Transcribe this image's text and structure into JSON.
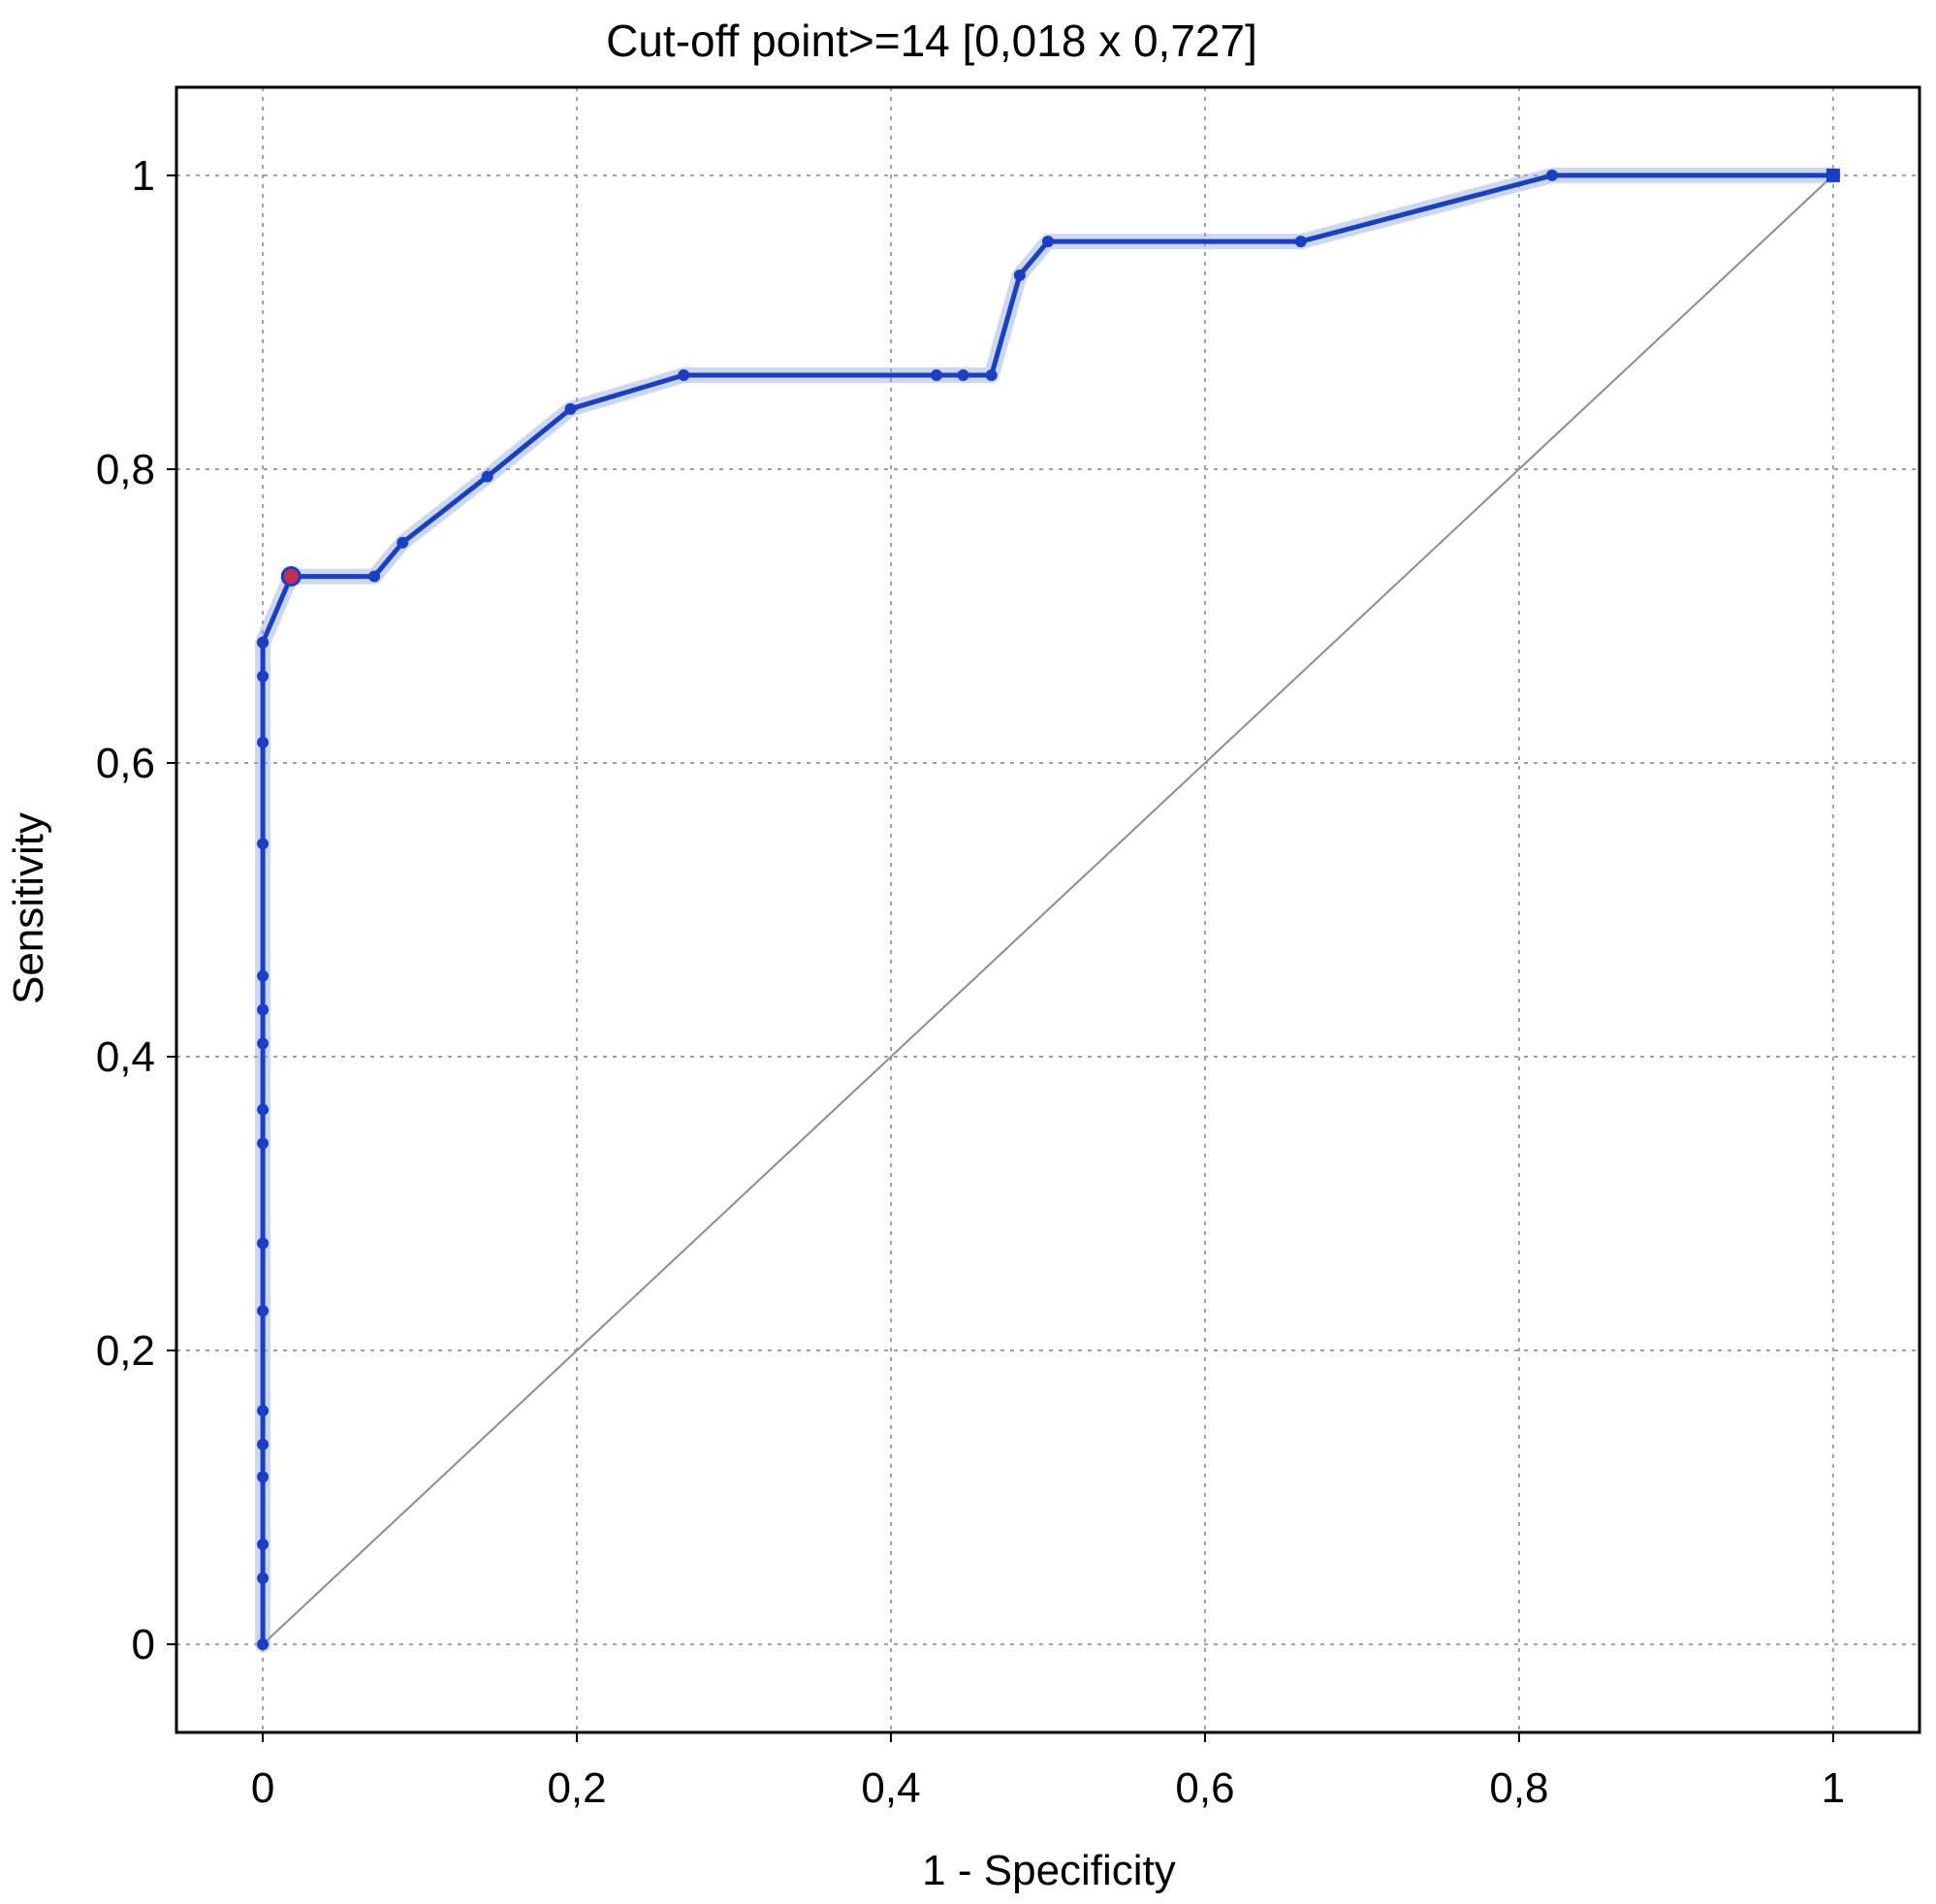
{
  "chart_data": {
    "type": "line",
    "title": "Cut-off point>=14 [0,018 x 0,727]",
    "xlabel": "1 - Specificity",
    "ylabel": "Sensitivity",
    "xlim": [
      -0.055,
      1.055
    ],
    "ylim": [
      -0.06,
      1.06
    ],
    "grid": true,
    "x_ticks": [
      {
        "value": 0,
        "label": "0"
      },
      {
        "value": 0.2,
        "label": "0,2"
      },
      {
        "value": 0.4,
        "label": "0,4"
      },
      {
        "value": 0.6,
        "label": "0,6"
      },
      {
        "value": 0.8,
        "label": "0,8"
      },
      {
        "value": 1,
        "label": "1"
      }
    ],
    "y_ticks": [
      {
        "value": 0,
        "label": "0"
      },
      {
        "value": 0.2,
        "label": "0,2"
      },
      {
        "value": 0.4,
        "label": "0,4"
      },
      {
        "value": 0.6,
        "label": "0,6"
      },
      {
        "value": 0.8,
        "label": "0,8"
      },
      {
        "value": 1,
        "label": "1"
      }
    ],
    "series": [
      {
        "color": "#1a3fc4",
        "halo_color": "#8fa6e0",
        "x": [
          0,
          0,
          0,
          0,
          0,
          0,
          0,
          0,
          0,
          0,
          0,
          0,
          0,
          0,
          0,
          0,
          0,
          0,
          0,
          0.018,
          0.071,
          0.089,
          0.143,
          0.196,
          0.268,
          0.429,
          0.446,
          0.464,
          0.482,
          0.5,
          0.661,
          0.821,
          1
        ],
        "y": [
          0,
          0.045,
          0.068,
          0.114,
          0.136,
          0.159,
          0.227,
          0.273,
          0.341,
          0.364,
          0.409,
          0.432,
          0.455,
          0.545,
          0.614,
          0.659,
          0.682,
          0.682,
          0.682,
          0.727,
          0.727,
          0.75,
          0.795,
          0.841,
          0.864,
          0.864,
          0.864,
          0.864,
          0.932,
          0.955,
          0.955,
          1,
          1
        ]
      }
    ],
    "reference_line": {
      "x": [
        0,
        1
      ],
      "y": [
        0,
        1
      ],
      "color": "#8c8c8c"
    },
    "highlight_point": {
      "x": 0.018,
      "y": 0.727,
      "color": "#c03050"
    }
  }
}
